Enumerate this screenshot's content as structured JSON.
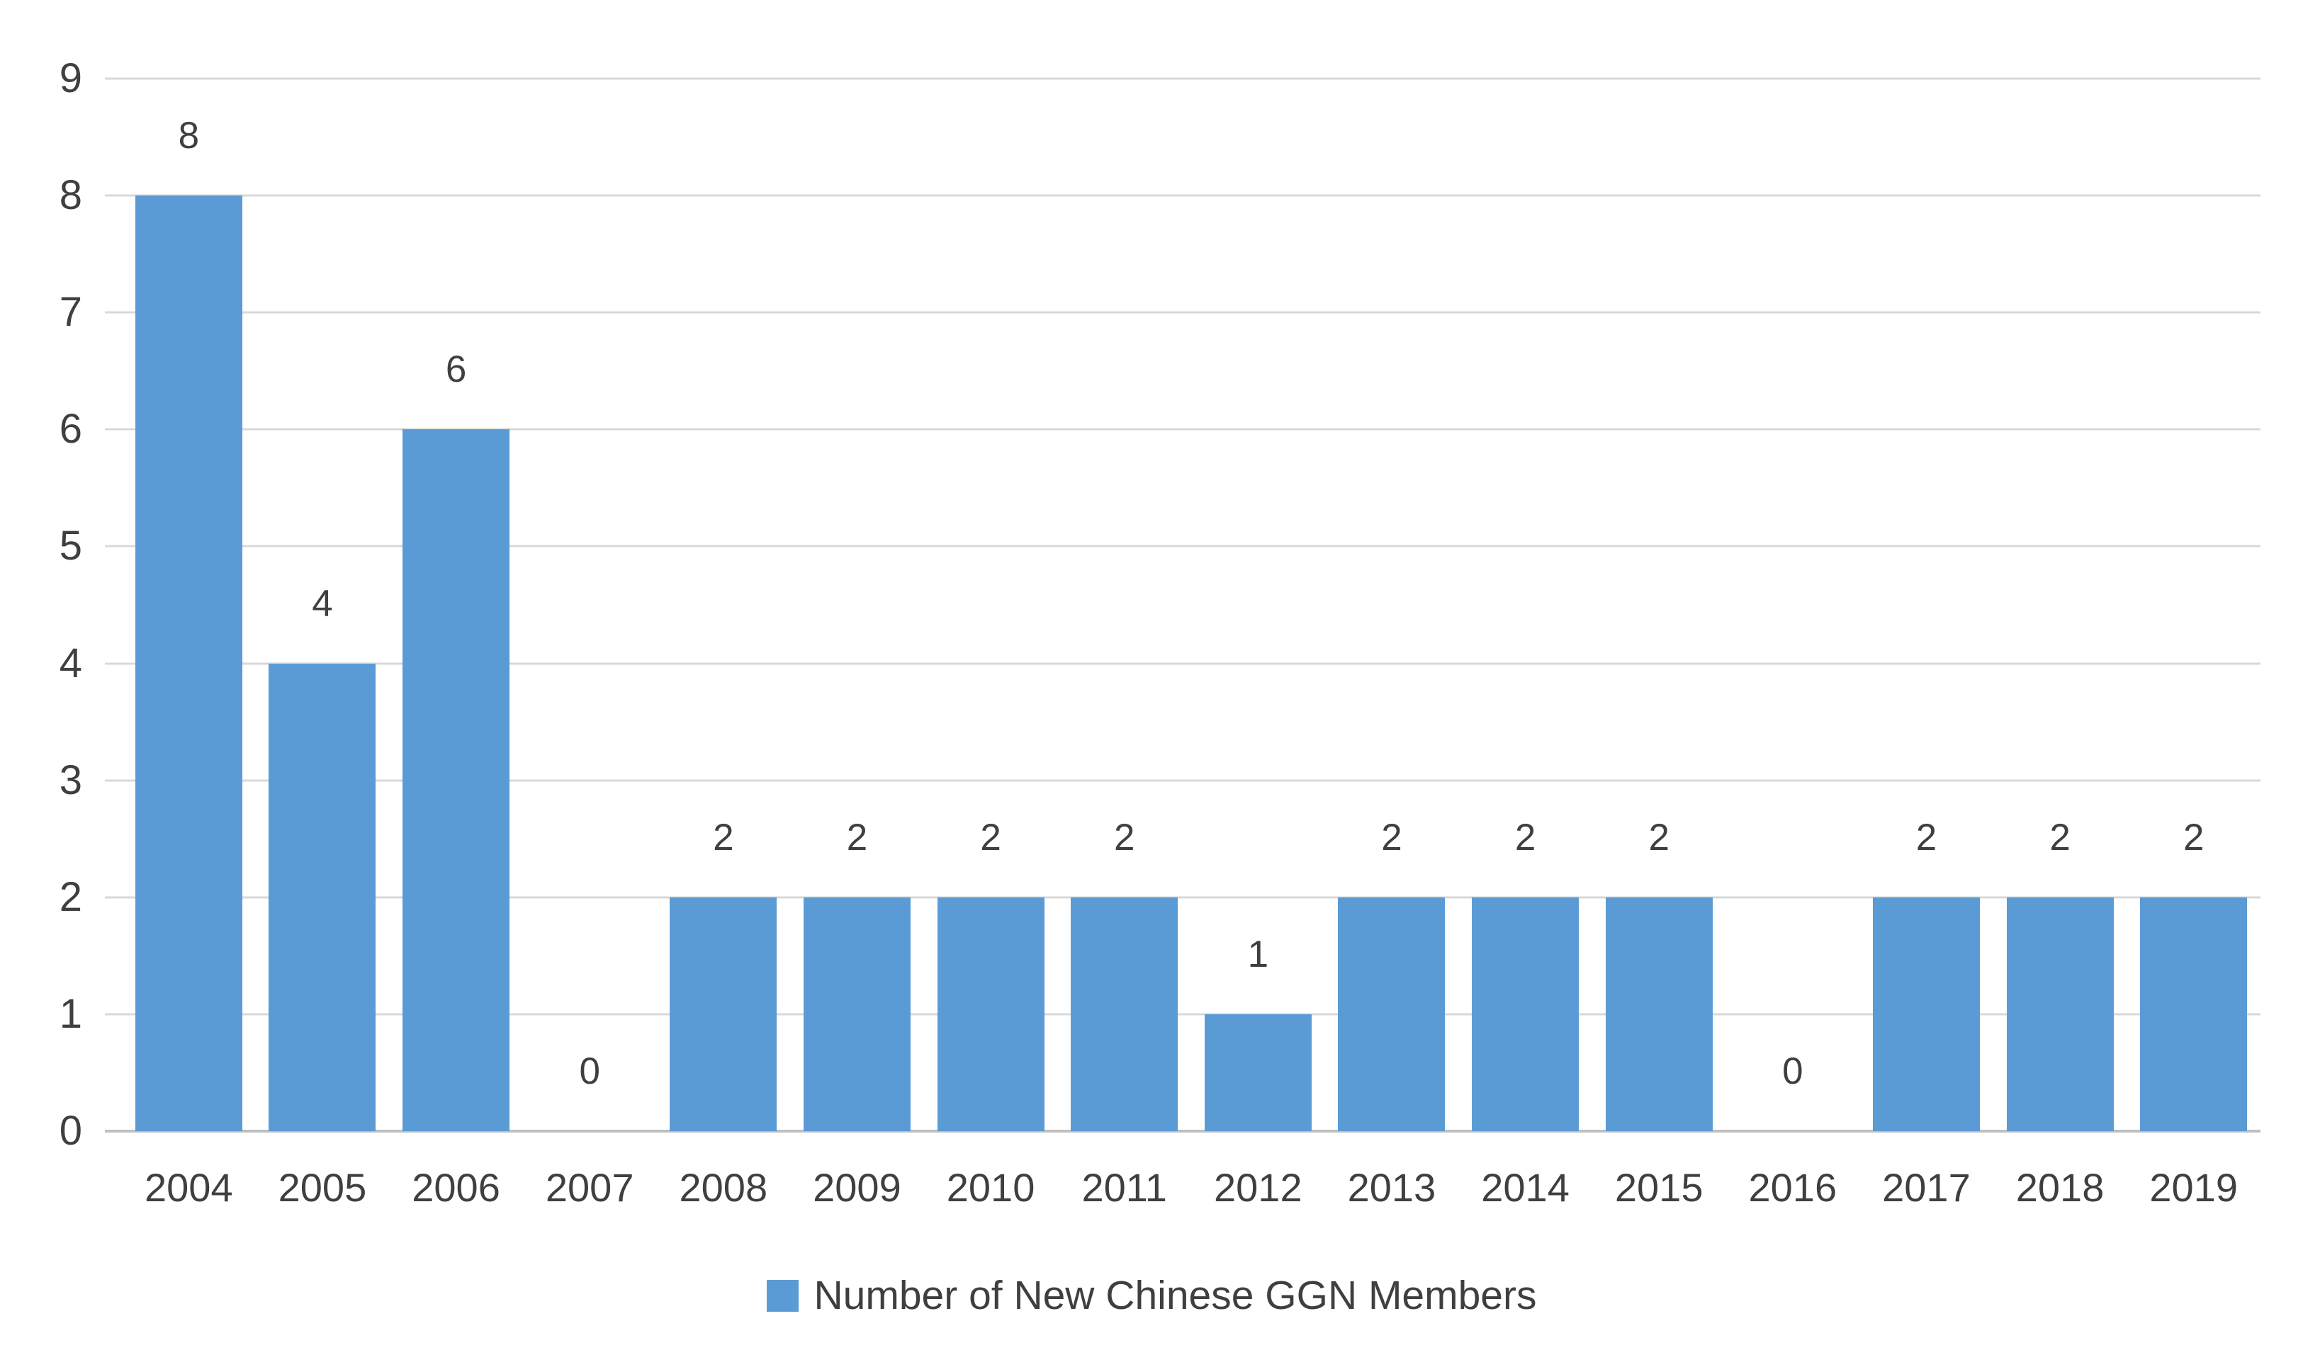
{
  "chart_data": {
    "type": "bar",
    "title": "",
    "categories": [
      "2004",
      "2005",
      "2006",
      "2007",
      "2008",
      "2009",
      "2010",
      "2011",
      "2012",
      "2013",
      "2014",
      "2015",
      "2016",
      "2017",
      "2018",
      "2019"
    ],
    "values": [
      8,
      4,
      6,
      0,
      2,
      2,
      2,
      2,
      1,
      2,
      2,
      2,
      0,
      2,
      2,
      2
    ],
    "series_name": "Number of New Chinese GGN Members",
    "xlabel": "",
    "ylabel": "",
    "ylim": [
      0,
      9
    ],
    "yticks": [
      0,
      1,
      2,
      3,
      4,
      5,
      6,
      7,
      8,
      9
    ],
    "grid": true,
    "data_labels": true,
    "legend_position": "bottom"
  },
  "legend": {
    "label": "Number of New Chinese GGN Members"
  },
  "colors": {
    "bar": "#5B9BD5",
    "gridline": "#D8D8D8",
    "axis_line": "#BFBFBF",
    "text": "#3F3F3F"
  }
}
